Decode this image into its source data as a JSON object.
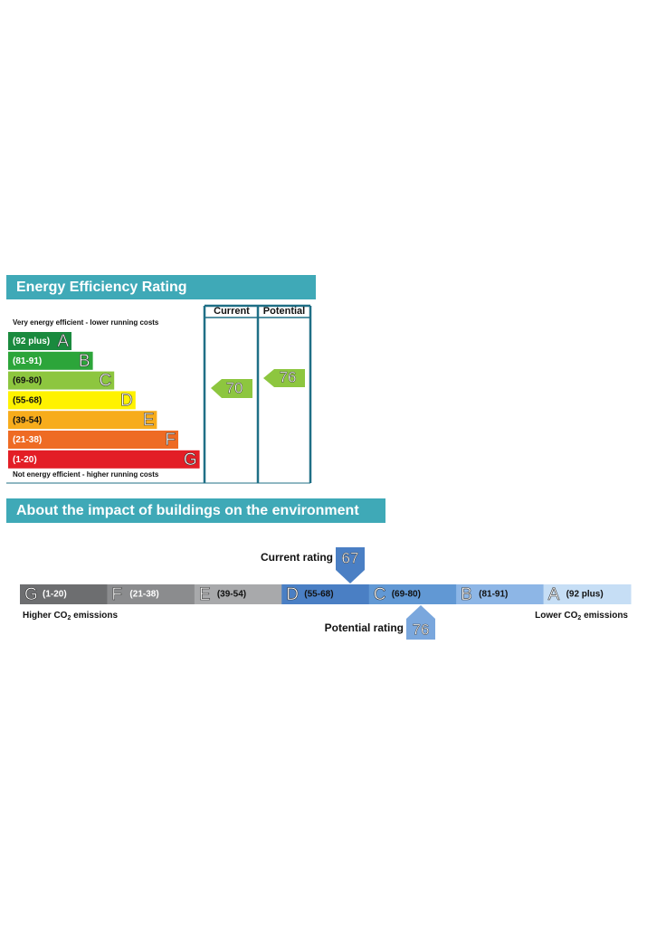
{
  "efficiency": {
    "title": "Energy Efficiency Rating",
    "columns": [
      "Current",
      "Potential"
    ],
    "top_note": "Very energy efficient - lower running costs",
    "bottom_note": "Not energy efficient - higher running costs",
    "bands": [
      {
        "range": "(92 plus)",
        "letter": "A",
        "color": "#1a8a3e",
        "text_color": "#ffffff"
      },
      {
        "range": "(81-91)",
        "letter": "B",
        "color": "#2ca53a",
        "text_color": "#ffffff"
      },
      {
        "range": "(69-80)",
        "letter": "C",
        "color": "#8dc63f",
        "text_color": "#111111"
      },
      {
        "range": "(55-68)",
        "letter": "D",
        "color": "#fff200",
        "text_color": "#111111"
      },
      {
        "range": "(39-54)",
        "letter": "E",
        "color": "#f7ac1c",
        "text_color": "#111111"
      },
      {
        "range": "(21-38)",
        "letter": "F",
        "color": "#ee6b24",
        "text_color": "#ffffff"
      },
      {
        "range": "(1-20)",
        "letter": "G",
        "color": "#e31e26",
        "text_color": "#ffffff"
      }
    ],
    "current": 70,
    "potential": 76,
    "arrow_color": "#8dc63f"
  },
  "environment": {
    "title": "About the impact of buildings on the environment",
    "bands": [
      {
        "letter": "G",
        "range": "(1-20)",
        "color": "#6d6e70",
        "text_color": "#ffffff"
      },
      {
        "letter": "F",
        "range": "(21-38)",
        "color": "#8b8c8e",
        "text_color": "#ffffff"
      },
      {
        "letter": "E",
        "range": "(39-54)",
        "color": "#a8a9ab",
        "text_color": "#111111"
      },
      {
        "letter": "D",
        "range": "(55-68)",
        "color": "#4a7fc4",
        "text_color": "#111111"
      },
      {
        "letter": "C",
        "range": "(69-80)",
        "color": "#6198d4",
        "text_color": "#111111"
      },
      {
        "letter": "B",
        "range": "(81-91)",
        "color": "#8db6e6",
        "text_color": "#111111"
      },
      {
        "letter": "A",
        "range": "(92 plus)",
        "color": "#c6def5",
        "text_color": "#111111"
      }
    ],
    "current_label": "Current rating",
    "current": 67,
    "current_color": "#4a7fc4",
    "potential_label": "Potential rating",
    "potential": 76,
    "potential_color": "#7aa7dd",
    "left_note": [
      "Higher CO",
      "2",
      " emissions"
    ],
    "right_note": [
      "Lower CO",
      "2",
      " emissions"
    ]
  }
}
